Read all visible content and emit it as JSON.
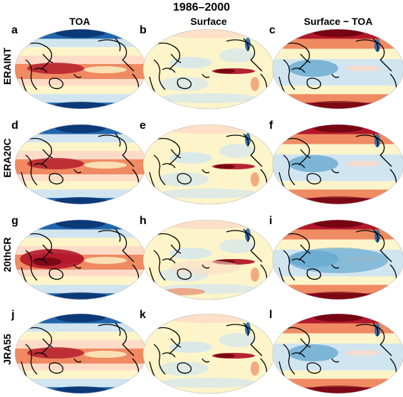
{
  "figure": {
    "title": "1986–2000",
    "columns": [
      {
        "label": "TOA",
        "key": "toa"
      },
      {
        "label": "Surface",
        "key": "surface"
      },
      {
        "label": "Surface − TOA",
        "key": "surface_minus_toa"
      }
    ],
    "rows": [
      {
        "label": "ERAINT",
        "key": "eraint"
      },
      {
        "label": "ERA20C",
        "key": "era20c"
      },
      {
        "label": "20thCR",
        "key": "20thcr"
      },
      {
        "label": "JRA55",
        "key": "jra55"
      }
    ],
    "panels": [
      {
        "letter": "a",
        "row": "ERAINT",
        "column": "TOA"
      },
      {
        "letter": "b",
        "row": "ERAINT",
        "column": "Surface"
      },
      {
        "letter": "c",
        "row": "ERAINT",
        "column": "Surface − TOA"
      },
      {
        "letter": "d",
        "row": "ERA20C",
        "column": "TOA"
      },
      {
        "letter": "e",
        "row": "ERA20C",
        "column": "Surface"
      },
      {
        "letter": "f",
        "row": "ERA20C",
        "column": "Surface − TOA"
      },
      {
        "letter": "g",
        "row": "20thCR",
        "column": "TOA"
      },
      {
        "letter": "h",
        "row": "20thCR",
        "column": "Surface"
      },
      {
        "letter": "i",
        "row": "20thCR",
        "column": "Surface − TOA"
      },
      {
        "letter": "j",
        "row": "JRA55",
        "column": "TOA"
      },
      {
        "letter": "k",
        "row": "JRA55",
        "column": "Surface"
      },
      {
        "letter": "l",
        "row": "JRA55",
        "column": "Surface − TOA"
      }
    ],
    "map_projection": "Hammer-Aitoff, Pacific-centred",
    "colormap": [
      "#08306b",
      "#2166ac",
      "#67a9cf",
      "#d1e5f0",
      "#fdf5c9",
      "#fddbc7",
      "#ef8a62",
      "#b2182b",
      "#67000d"
    ],
    "coastline_color": "#000000"
  }
}
